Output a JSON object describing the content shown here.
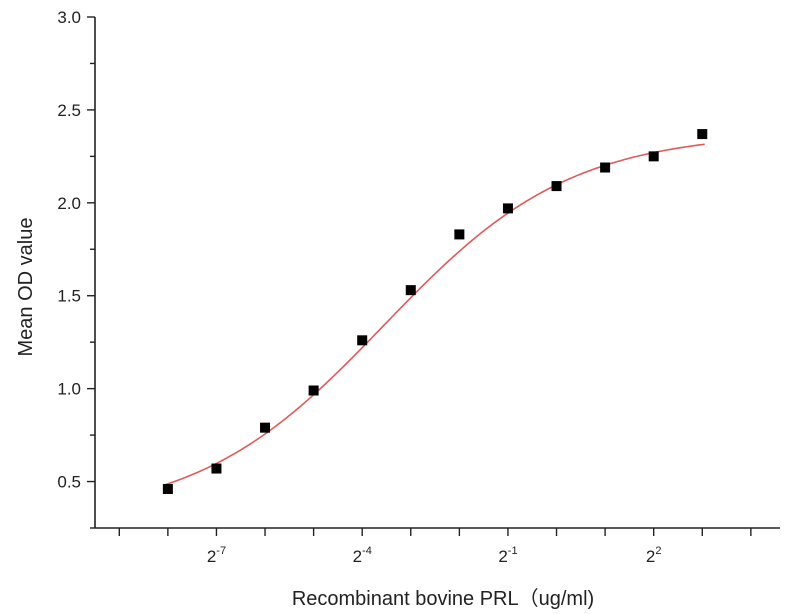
{
  "chart_data": {
    "type": "scatter",
    "xlabel": "Recombinant bovine PRL（ug/ml)",
    "ylabel": "Mean OD value",
    "x_scale": "log2",
    "ylim": [
      0.25,
      3.0
    ],
    "y_ticks": [
      "0.5",
      "1.0",
      "1.5",
      "2.0",
      "2.5",
      "3.0"
    ],
    "x_tick_labels": [
      {
        "base": "2",
        "exp": "-7",
        "x": 0.0078125
      },
      {
        "base": "2",
        "exp": "-4",
        "x": 0.0625
      },
      {
        "base": "2",
        "exp": "-1",
        "x": 0.5
      },
      {
        "base": "2",
        "exp": "2",
        "x": 4
      }
    ],
    "x_tick_exponents": [
      -9,
      -8,
      -7,
      -6,
      -5,
      -4,
      -3,
      -2,
      -1,
      0,
      1,
      2,
      3,
      4
    ],
    "x_range_exponents": [
      -9.5,
      4.6
    ],
    "marker": "square",
    "marker_color": "#000000",
    "fit_color": "#e05a5a",
    "series": [
      {
        "x": [
          0.00390625,
          0.0078125,
          0.015625,
          0.03125,
          0.0625,
          0.125,
          0.25,
          0.5,
          1,
          2,
          4,
          8
        ],
        "values": [
          0.46,
          0.57,
          0.79,
          0.99,
          1.26,
          1.53,
          1.83,
          1.97,
          2.09,
          2.19,
          2.25,
          2.37
        ]
      }
    ],
    "fit_params": {
      "A1": 0.3,
      "A2": 2.38,
      "x0": 0.085,
      "p": 0.75
    },
    "grid": false,
    "legend": "none"
  }
}
